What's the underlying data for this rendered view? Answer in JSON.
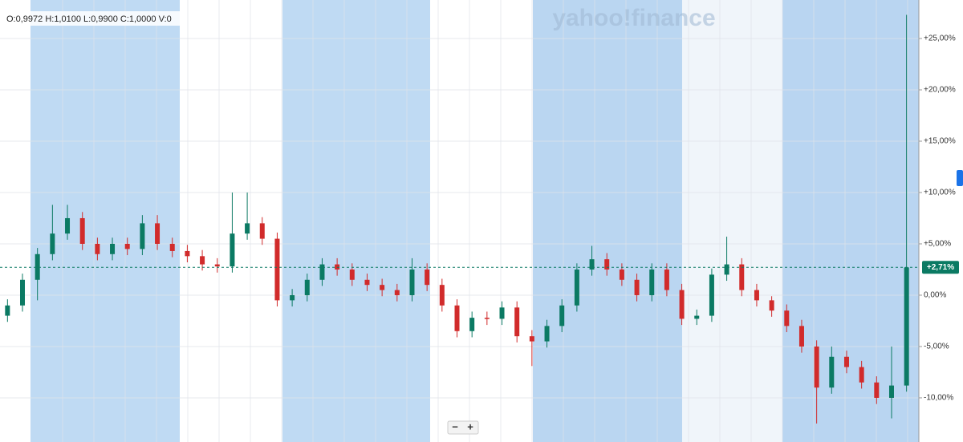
{
  "chart_data": {
    "type": "candlestick",
    "header": "O:0,9972  H:1,0100  L:0,9900  C:1,0000  V:0",
    "watermark": "yahoo!finance",
    "zoom_out": "−",
    "zoom_in": "+",
    "up_color": "#0b7a63",
    "down_color": "#d12b2b",
    "ylim": [
      -14.3,
      28.75
    ],
    "yticks": [
      {
        "value": -10,
        "label": "-10,00%"
      },
      {
        "value": -5,
        "label": "-5,00%"
      },
      {
        "value": 0,
        "label": "0,00%"
      },
      {
        "value": 5,
        "label": "+5,00%"
      },
      {
        "value": 10,
        "label": "+10,00%"
      },
      {
        "value": 15,
        "label": "+15,00%"
      },
      {
        "value": 20,
        "label": "+20,00%"
      },
      {
        "value": 25,
        "label": "+25,00%"
      }
    ],
    "grid": true,
    "last_price": {
      "value": 2.71,
      "label": "+2,71%"
    },
    "open": [
      -2,
      -1,
      1.5,
      4,
      6,
      7.5,
      5,
      4,
      5,
      4.5,
      7,
      5,
      4.3,
      3.8,
      3,
      2.8,
      6,
      7,
      5.5,
      -0.5,
      0,
      1.5,
      3,
      2.5,
      1.5,
      1,
      0.5,
      0,
      2.5,
      1,
      -1,
      -3.5,
      -2.2,
      -2.3,
      -1.2,
      -4,
      -4.5,
      -3,
      -1,
      2.5,
      3.5,
      2.5,
      1.5,
      0,
      2.5,
      0.5,
      -2.3,
      -2,
      2,
      3,
      0.5,
      -0.5,
      -1.5,
      -3,
      -5,
      -9,
      -6,
      -7,
      -8.5,
      -10,
      -8.8
    ],
    "high": [
      -0.4,
      2.1,
      4.6,
      8.8,
      8.8,
      8.1,
      5.6,
      5.6,
      5.6,
      7.8,
      7.8,
      5.6,
      4.9,
      4.4,
      3.6,
      10,
      10,
      7.6,
      6.1,
      0.6,
      2.1,
      3.6,
      3.6,
      3.1,
      2.1,
      1.6,
      1.1,
      3.6,
      3.1,
      1.6,
      -0.4,
      -1.6,
      -1.6,
      -0.6,
      -0.6,
      -3.4,
      -2.4,
      -0.4,
      3.1,
      4.8,
      4.1,
      3.1,
      2.1,
      3.1,
      3.1,
      1.1,
      -1.4,
      2.6,
      5.7,
      3.6,
      1.1,
      -0.1,
      -0.9,
      -2.4,
      -4.4,
      -5,
      -5.4,
      -6.4,
      -7.9,
      -5,
      27.3
    ],
    "low": [
      -2.6,
      -1.6,
      -0.5,
      3.4,
      5.4,
      4.4,
      3.4,
      3.4,
      3.9,
      3.9,
      4.4,
      3.7,
      3.2,
      2.4,
      2.2,
      2.2,
      5.4,
      4.9,
      -1.1,
      -1.1,
      -0.6,
      0.9,
      1.9,
      0.9,
      0.4,
      -0.1,
      -0.6,
      -0.6,
      0.4,
      -1.6,
      -4.1,
      -4.1,
      -2.9,
      -2.9,
      -4.6,
      -6.9,
      -5.1,
      -3.6,
      -1.6,
      1.9,
      1.9,
      0.9,
      -0.6,
      -0.6,
      -0.1,
      -2.9,
      -2.9,
      -2.6,
      1.4,
      -0.1,
      -1.1,
      -2.1,
      -3.6,
      -5.6,
      -12.5,
      -9.6,
      -7.6,
      -9.1,
      -10.6,
      -12,
      -9.4
    ],
    "close": [
      -1,
      1.5,
      4,
      6,
      7.5,
      5,
      4,
      5,
      4.5,
      7,
      5,
      4.3,
      3.8,
      3,
      2.8,
      6,
      7,
      5.5,
      -0.5,
      0,
      1.5,
      3,
      2.5,
      1.5,
      1,
      0.5,
      0,
      2.5,
      1,
      -1,
      -3.5,
      -2.2,
      -2.3,
      -1.2,
      -4,
      -4.5,
      -3,
      -1,
      2.5,
      3.5,
      2.5,
      1.5,
      0,
      2.5,
      0.5,
      -2.3,
      -2,
      2,
      3,
      0.5,
      -0.5,
      -1.5,
      -3,
      -5,
      -9,
      -6,
      -7,
      -8.5,
      -10,
      -8.8,
      2.71
    ]
  }
}
